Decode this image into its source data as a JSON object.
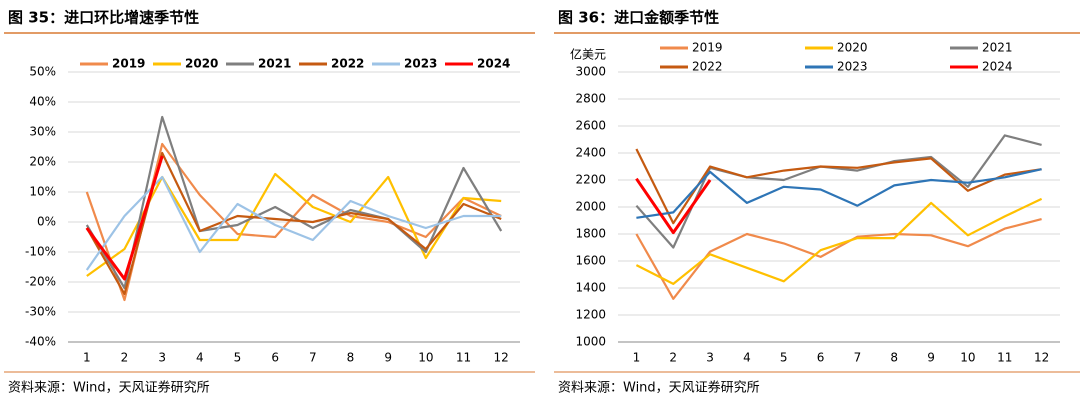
{
  "chart_data": [
    {
      "type": "line",
      "title": "图 35：进口环比增速季节性",
      "source": "资料来源：Wind，天风证券研究所",
      "categories": [
        "1",
        "2",
        "3",
        "4",
        "5",
        "6",
        "7",
        "8",
        "9",
        "10",
        "11",
        "12"
      ],
      "ylim": [
        -40,
        50
      ],
      "yticks": [
        {
          "value": -40,
          "label": "-40%"
        },
        {
          "value": -30,
          "label": "-30%"
        },
        {
          "value": -20,
          "label": "-20%"
        },
        {
          "value": -10,
          "label": "-10%"
        },
        {
          "value": 0,
          "label": "0%"
        },
        {
          "value": 10,
          "label": "10%"
        },
        {
          "value": 20,
          "label": "20%"
        },
        {
          "value": 30,
          "label": "30%"
        },
        {
          "value": 40,
          "label": "40%"
        },
        {
          "value": 50,
          "label": "50%"
        }
      ],
      "grid": true,
      "legend": "top",
      "series": [
        {
          "name": "2019",
          "color": "#f08a4b",
          "values": [
            10,
            -26,
            26,
            9,
            -4,
            -5,
            9,
            2,
            0,
            -5,
            8,
            2
          ]
        },
        {
          "name": "2020",
          "color": "#ffc000",
          "values": [
            -18,
            -9,
            15,
            -6,
            -6,
            16,
            5,
            0,
            15,
            -12,
            8,
            7
          ]
        },
        {
          "name": "2021",
          "color": "#7f7f7f",
          "values": [
            -1,
            -22,
            35,
            -3,
            -1,
            5,
            -2,
            4,
            1,
            -10,
            18,
            -3
          ]
        },
        {
          "name": "2022",
          "color": "#c55a11",
          "values": [
            -2,
            -24,
            23,
            -3,
            2,
            1,
            0,
            3,
            1,
            -9,
            6,
            1
          ]
        },
        {
          "name": "2023",
          "color": "#9dc3e6",
          "values": [
            -16,
            2,
            15,
            -10,
            6,
            -1,
            -6,
            7,
            2,
            -2,
            2,
            2
          ]
        },
        {
          "name": "2024",
          "color": "#ff0000",
          "values": [
            -2,
            -19,
            22,
            null,
            null,
            null,
            null,
            null,
            null,
            null,
            null,
            null
          ]
        }
      ]
    },
    {
      "type": "line",
      "title": "图 36：进口金额季节性",
      "source": "资料来源：Wind，天风证券研究所",
      "y_label": "亿美元",
      "categories": [
        "1",
        "2",
        "3",
        "4",
        "5",
        "6",
        "7",
        "8",
        "9",
        "10",
        "11",
        "12"
      ],
      "ylim": [
        1000,
        3000
      ],
      "yticks": [
        1000,
        1200,
        1400,
        1600,
        1800,
        2000,
        2200,
        2400,
        2600,
        2800,
        3000
      ],
      "grid": true,
      "legend": "top",
      "series": [
        {
          "name": "2019",
          "color": "#f08a4b",
          "values": [
            1800,
            1320,
            1670,
            1800,
            1730,
            1630,
            1780,
            1800,
            1790,
            1710,
            1840,
            1910
          ]
        },
        {
          "name": "2020",
          "color": "#ffc000",
          "values": [
            1570,
            1430,
            1650,
            1550,
            1450,
            1680,
            1770,
            1770,
            2030,
            1790,
            1930,
            2060
          ]
        },
        {
          "name": "2021",
          "color": "#7f7f7f",
          "values": [
            2010,
            1700,
            2290,
            2220,
            2200,
            2300,
            2270,
            2340,
            2370,
            2150,
            2530,
            2460
          ]
        },
        {
          "name": "2022",
          "color": "#c55a11",
          "values": [
            2430,
            1880,
            2300,
            2220,
            2270,
            2300,
            2290,
            2330,
            2360,
            2120,
            2240,
            2280
          ]
        },
        {
          "name": "2023",
          "color": "#2e75b6",
          "values": [
            1920,
            1960,
            2260,
            2030,
            2150,
            2130,
            2010,
            2160,
            2200,
            2180,
            2220,
            2280
          ]
        },
        {
          "name": "2024",
          "color": "#ff0000",
          "values": [
            2210,
            1810,
            2200,
            null,
            null,
            null,
            null,
            null,
            null,
            null,
            null,
            null
          ]
        }
      ]
    }
  ]
}
